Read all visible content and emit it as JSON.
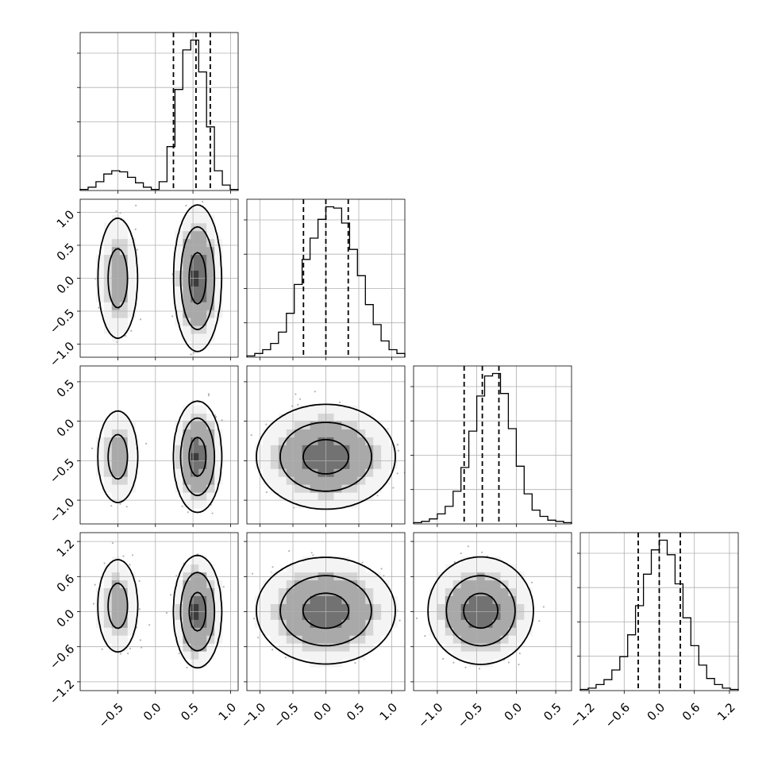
{
  "chart_data": {
    "type": "corner",
    "parameters": 4,
    "grid": true,
    "style": {
      "histogram_color": "#000000",
      "scatter_color": "#b4b4b4",
      "contour_color": "#000000",
      "grid_color": "#b0b0b0",
      "density_fill_levels": [
        "#f4f4f4",
        "#d6d6d6",
        "#a9a9a9",
        "#727272",
        "#3c3c3c"
      ]
    },
    "axes": [
      {
        "range": [
          -1.0,
          1.1
        ],
        "tick_values": [
          -0.5,
          0.0,
          0.5,
          1.0
        ],
        "tick_labels": [
          "−0.5",
          "0.0",
          "0.5",
          "1.0"
        ]
      },
      {
        "range": [
          -1.2,
          1.2
        ],
        "tick_values": [
          -1.0,
          -0.5,
          0.0,
          0.5,
          1.0
        ],
        "tick_labels": [
          "−1.0",
          "−0.5",
          "0.0",
          "0.5",
          "1.0"
        ]
      },
      {
        "range": [
          -1.3,
          0.7
        ],
        "tick_values": [
          -1.0,
          -0.5,
          0.0,
          0.5
        ],
        "tick_labels": [
          "−1.0",
          "−0.5",
          "0.0",
          "0.5"
        ]
      },
      {
        "range": [
          -1.35,
          1.35
        ],
        "tick_values": [
          -1.2,
          -0.6,
          0.0,
          0.6,
          1.2
        ],
        "tick_labels": [
          "−1.2",
          "−0.6",
          "0.0",
          "0.6",
          "1.2"
        ]
      }
    ],
    "histograms": [
      {
        "parameter": 0,
        "bins": 20,
        "counts": [
          1,
          3,
          8,
          15,
          18,
          17,
          12,
          7,
          3,
          1,
          8,
          40,
          92,
          128,
          137,
          108,
          58,
          18,
          5,
          1
        ],
        "quantiles": [
          0.24,
          0.54,
          0.73
        ]
      },
      {
        "parameter": 1,
        "bins": 20,
        "counts": [
          1,
          3,
          6,
          11,
          20,
          35,
          58,
          78,
          95,
          110,
          120,
          119,
          107,
          86,
          65,
          42,
          26,
          13,
          6,
          3
        ],
        "quantiles": [
          -0.34,
          0.0,
          0.34
        ]
      },
      {
        "parameter": 2,
        "bins": 20,
        "counts": [
          1,
          2,
          4,
          8,
          14,
          26,
          45,
          74,
          102,
          118,
          120,
          104,
          76,
          46,
          24,
          11,
          6,
          3,
          2,
          1
        ],
        "quantiles": [
          -0.66,
          -0.43,
          -0.22
        ]
      },
      {
        "parameter": 3,
        "bins": 20,
        "counts": [
          1,
          2,
          5,
          9,
          17,
          28,
          46,
          70,
          96,
          116,
          124,
          112,
          88,
          60,
          37,
          21,
          10,
          5,
          2,
          1
        ],
        "quantiles": [
          -0.36,
          0.0,
          0.36
        ]
      }
    ],
    "distribution": {
      "modes": [
        {
          "weight": 0.16,
          "mean": [
            -0.5,
            0.0,
            -0.45,
            0.1
          ],
          "sd": [
            0.1,
            0.35,
            0.22,
            0.3
          ]
        },
        {
          "weight": 0.84,
          "mean": [
            0.56,
            0.0,
            -0.45,
            0.0
          ],
          "sd": [
            0.1,
            0.35,
            0.22,
            0.3
          ]
        }
      ],
      "credible_levels": [
        0.39,
        0.86,
        0.99
      ]
    }
  }
}
